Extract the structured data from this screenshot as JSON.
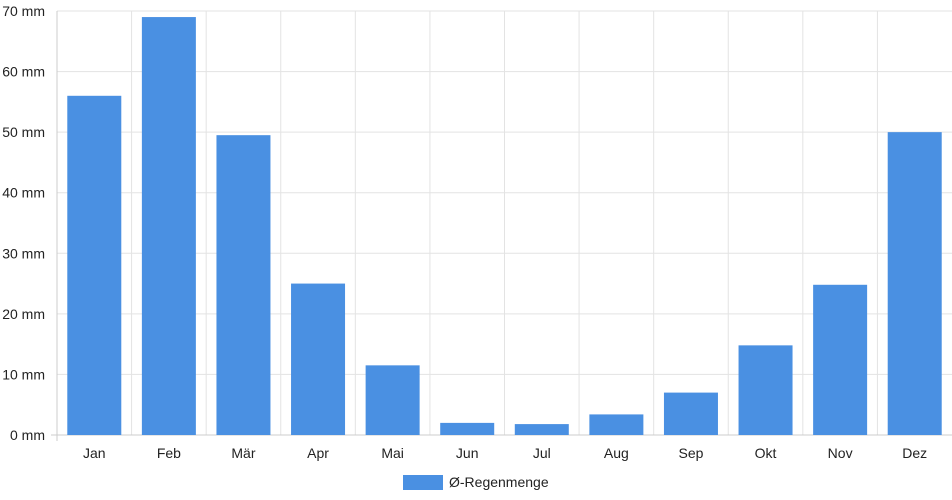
{
  "chart_data": {
    "type": "bar",
    "categories": [
      "Jan",
      "Feb",
      "Mär",
      "Apr",
      "Mai",
      "Jun",
      "Jul",
      "Aug",
      "Sep",
      "Okt",
      "Nov",
      "Dez"
    ],
    "series": [
      {
        "name": "Ø-Regenmenge",
        "values": [
          56,
          69,
          49.5,
          25,
          11.5,
          2,
          1.8,
          3.4,
          7,
          14.8,
          24.8,
          50
        ],
        "color": "#4a90e2"
      }
    ],
    "y_ticks": [
      "0 mm",
      "10 mm",
      "20 mm",
      "30 mm",
      "40 mm",
      "50 mm",
      "60 mm",
      "70 mm"
    ],
    "ylim": [
      0,
      70
    ],
    "grid": true,
    "legend_position": "bottom-center"
  }
}
